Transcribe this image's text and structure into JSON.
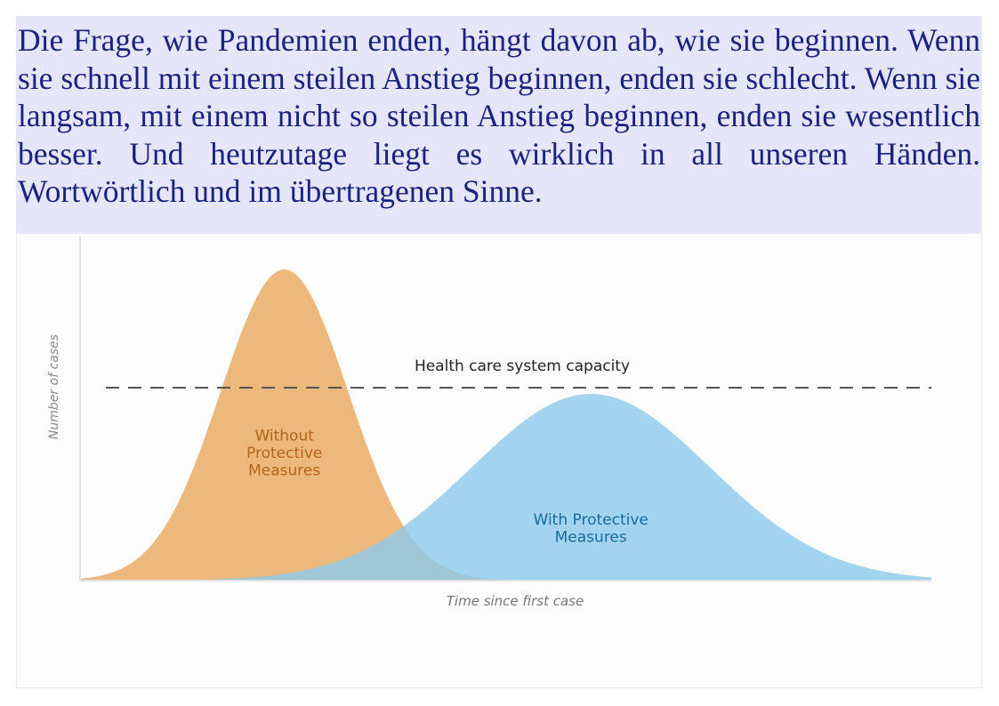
{
  "paragraph": {
    "text": "Die Frage, wie Pandemien enden, hängt davon ab, wie sie beginnen. Wenn sie schnell mit einem steilen Anstieg beginnen, enden sie schlecht. Wenn sie langsam, mit einem nicht so steilen Anstieg beginnen, enden sie wesentlich besser. Und heutzutage liegt es wirklich in all unseren Händen. Wortwörtlich und im übertragenen Sinne."
  },
  "chart_data": {
    "type": "area",
    "title": "",
    "xlabel": "Time since first case",
    "ylabel": "Number of cases",
    "xlim": [
      0,
      100
    ],
    "ylim": [
      0,
      100
    ],
    "grid": false,
    "legend": "none",
    "capacity_line": {
      "label": "Health care system capacity",
      "value": 62,
      "style": "dashed",
      "color": "#555555"
    },
    "series": [
      {
        "name": "Without Protective Measures",
        "label_lines": [
          "Without",
          "Protective",
          "Measures"
        ],
        "shape": "gaussian",
        "peak_x": 24,
        "peak_y": 100,
        "spread": 7.5,
        "color": "#ecb474",
        "label_color": "#b4661c"
      },
      {
        "name": "With Protective Measures",
        "label_lines": [
          "With Protective",
          "Measures"
        ],
        "shape": "gaussian",
        "peak_x": 60,
        "peak_y": 60,
        "spread": 14,
        "color": "#8ecbeb",
        "label_color": "#1b6a9c"
      }
    ]
  }
}
